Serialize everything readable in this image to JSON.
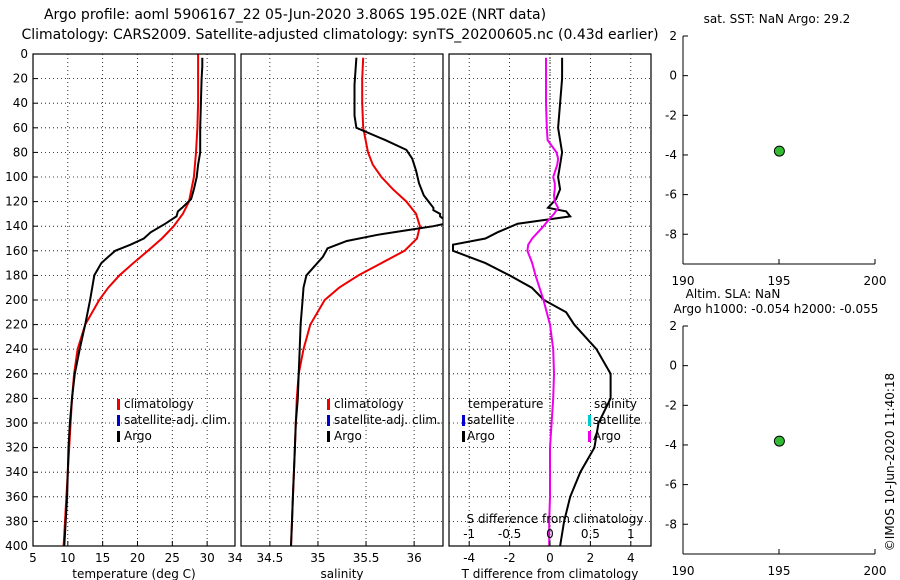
{
  "title": {
    "line1": "Argo profile: aoml 5906167_22 05-Jun-2020 3.806S 195.02E (NRT data)",
    "line2": "Climatology: CARS2009. Satellite-adjusted climatology: synTS_20200605.nc (0.43d earlier)"
  },
  "colors": {
    "climatology": "#ee0000",
    "satellite": "#0000cc",
    "argo": "#000000",
    "argo_salinity_diff": "#ee00ee",
    "satellite_salinity": "#00cccc",
    "marker": "#33bb33"
  },
  "timestamp": "©IMOS 10-Jun-2020 11:40:18",
  "legend_profile": {
    "climatology": "climatology",
    "satellite": "satellite-adj. clim.",
    "argo": "Argo"
  },
  "legend_diff": {
    "temperature": "temperature",
    "salinity": "salinity",
    "satellite": "satellite",
    "argo": "Argo"
  },
  "sst_text": "sat. SST: NaN Argo: 29.2",
  "sla_text": {
    "line1": "Altim. SLA: NaN",
    "line2": "Argo h1000: -0.054 h2000: -0.055"
  },
  "chart_data": [
    {
      "id": "temperature",
      "type": "line",
      "xlabel": "temperature (deg C)",
      "ylabel": "",
      "xlim": [
        5,
        34
      ],
      "ylim": [
        400,
        0
      ],
      "xticks": [
        5,
        10,
        15,
        20,
        25,
        30
      ],
      "yticks": [
        0,
        20,
        40,
        60,
        80,
        100,
        120,
        140,
        160,
        180,
        200,
        220,
        240,
        260,
        280,
        300,
        320,
        340,
        360,
        380,
        400
      ],
      "grid": true,
      "series": [
        {
          "name": "climatology",
          "color": "#ee0000",
          "depth": [
            0,
            20,
            40,
            60,
            80,
            100,
            120,
            130,
            140,
            150,
            160,
            170,
            180,
            190,
            200,
            220,
            240,
            260,
            280,
            300,
            320,
            340,
            360,
            380,
            400
          ],
          "values": [
            28.7,
            28.7,
            28.7,
            28.6,
            28.4,
            28.1,
            27.4,
            26.5,
            25.2,
            23.5,
            21.5,
            19.4,
            17.4,
            15.8,
            14.5,
            12.5,
            11.4,
            10.9,
            10.6,
            10.4,
            10.2,
            10.0,
            9.8,
            9.6,
            9.4
          ]
        },
        {
          "name": "Argo",
          "color": "#000000",
          "depth": [
            3,
            10,
            20,
            40,
            60,
            80,
            90,
            100,
            110,
            118,
            125,
            128,
            132,
            138,
            145,
            150,
            155,
            160,
            165,
            170,
            180,
            200,
            220,
            240,
            260,
            280,
            300,
            320,
            340,
            360,
            380,
            400
          ],
          "values": [
            29.3,
            29.3,
            29.2,
            29.1,
            29.0,
            29.0,
            28.7,
            28.5,
            28.1,
            27.7,
            26.4,
            25.8,
            25.6,
            24.0,
            21.9,
            20.9,
            19.0,
            16.8,
            15.8,
            14.8,
            13.8,
            13.2,
            12.5,
            11.7,
            11.0,
            10.6,
            10.3,
            10.1,
            10.0,
            9.9,
            9.7,
            9.5
          ]
        }
      ]
    },
    {
      "id": "salinity",
      "type": "line",
      "xlabel": "salinity",
      "ylabel": "",
      "xlim": [
        34.2,
        36.3
      ],
      "ylim": [
        400,
        0
      ],
      "xticks": [
        34.5,
        35,
        35.5,
        36
      ],
      "xtick_labels": [
        "34.5",
        "35",
        "35.5",
        "36"
      ],
      "yticks": [
        0,
        20,
        40,
        60,
        80,
        100,
        120,
        140,
        160,
        180,
        200,
        220,
        240,
        260,
        280,
        300,
        320,
        340,
        360,
        380,
        400
      ],
      "grid": true,
      "series": [
        {
          "name": "climatology",
          "color": "#ee0000",
          "depth": [
            3,
            20,
            40,
            60,
            80,
            90,
            100,
            110,
            120,
            130,
            140,
            150,
            160,
            170,
            180,
            190,
            200,
            220,
            240,
            260,
            280,
            300,
            320,
            340,
            360,
            380,
            400
          ],
          "values": [
            35.47,
            35.46,
            35.46,
            35.47,
            35.52,
            35.57,
            35.66,
            35.78,
            35.92,
            36.02,
            36.06,
            36.03,
            35.9,
            35.66,
            35.42,
            35.22,
            35.07,
            34.92,
            34.85,
            34.8,
            34.78,
            34.77,
            34.76,
            34.75,
            34.74,
            34.73,
            34.72
          ]
        },
        {
          "name": "Argo",
          "color": "#000000",
          "depth": [
            3,
            25,
            50,
            60,
            70,
            78,
            85,
            95,
            105,
            115,
            120,
            125,
            127,
            130,
            132,
            135,
            138,
            140,
            143,
            147,
            152,
            158,
            165,
            172,
            180,
            190,
            200,
            220,
            240,
            260,
            280,
            300,
            320,
            340,
            360,
            380,
            400
          ],
          "values": [
            35.4,
            35.38,
            35.38,
            35.4,
            35.7,
            35.92,
            35.98,
            36.02,
            36.05,
            36.1,
            36.15,
            36.2,
            36.2,
            36.27,
            36.27,
            36.32,
            36.32,
            36.2,
            35.95,
            35.62,
            35.3,
            35.1,
            35.05,
            34.97,
            34.88,
            34.85,
            34.84,
            34.82,
            34.81,
            34.8,
            34.79,
            34.77,
            34.76,
            34.75,
            34.74,
            34.73,
            34.72
          ]
        }
      ]
    },
    {
      "id": "difference",
      "type": "line",
      "xlabel": "T difference from climatology",
      "top_xlabel": "S difference from climatology",
      "xlim": [
        -5,
        5
      ],
      "ylim": [
        400,
        0
      ],
      "xticks": [
        -4,
        -2,
        0,
        2,
        4
      ],
      "top_xticks": [
        -1,
        -0.5,
        0,
        0.5,
        1
      ],
      "top_xtick_labels": [
        "-1",
        "-0.5",
        "0",
        "0.5",
        "1"
      ],
      "yticks": [
        0,
        20,
        40,
        60,
        80,
        100,
        120,
        140,
        160,
        180,
        200,
        220,
        240,
        260,
        280,
        300,
        320,
        340,
        360,
        380,
        400
      ],
      "grid": true,
      "series": [
        {
          "name": "Argo temperature difference",
          "color": "#000000",
          "depth": [
            3,
            20,
            40,
            60,
            70,
            80,
            90,
            100,
            110,
            118,
            125,
            128,
            132,
            138,
            145,
            150,
            155,
            160,
            165,
            170,
            180,
            190,
            200,
            210,
            220,
            240,
            260,
            280,
            300,
            320,
            340,
            360,
            380,
            400
          ],
          "values": [
            0.6,
            0.6,
            0.5,
            0.4,
            0.5,
            0.6,
            0.5,
            0.4,
            0.5,
            0.3,
            -0.1,
            0.8,
            1.0,
            -1.6,
            -2.6,
            -3.2,
            -4.8,
            -4.8,
            -4.0,
            -3.2,
            -2.0,
            -0.9,
            -0.3,
            0.8,
            1.2,
            2.3,
            3.0,
            3.0,
            2.4,
            2.2,
            1.5,
            1.0,
            0.7,
            0.5
          ]
        },
        {
          "name": "Argo salinity difference",
          "color": "#ee00ee",
          "depth": [
            3,
            20,
            40,
            60,
            70,
            80,
            85,
            90,
            100,
            105,
            110,
            115,
            120,
            125,
            130,
            135,
            140,
            145,
            150,
            155,
            160,
            165,
            170,
            180,
            190,
            200,
            220,
            240,
            260,
            280,
            300,
            320,
            340,
            360,
            380,
            400
          ],
          "values": [
            -0.05,
            -0.05,
            -0.05,
            -0.04,
            -0.03,
            0.08,
            0.1,
            0.09,
            0.04,
            0.06,
            0.06,
            0.05,
            0.06,
            0.1,
            0.05,
            -0.02,
            -0.08,
            -0.15,
            -0.22,
            -0.27,
            -0.28,
            -0.25,
            -0.22,
            -0.18,
            -0.13,
            -0.08,
            0.0,
            0.04,
            0.05,
            0.04,
            0.02,
            0.0,
            0.0,
            0.0,
            -0.01,
            -0.01
          ]
        }
      ]
    },
    {
      "id": "sst",
      "type": "scatter",
      "title": "sat. SST: NaN Argo: 29.2",
      "xlim": [
        190,
        200
      ],
      "ylim": [
        -9.5,
        2
      ],
      "xticks": [
        190,
        195,
        200
      ],
      "yticks": [
        2,
        0,
        -2,
        -4,
        -6,
        -8
      ],
      "points": [
        {
          "x": 195.02,
          "y": -3.806
        }
      ]
    },
    {
      "id": "sla",
      "type": "scatter",
      "title": "Altim. SLA: NaN / Argo h1000: -0.054 h2000: -0.055",
      "xlim": [
        190,
        200
      ],
      "ylim": [
        -9.5,
        2
      ],
      "xticks": [
        190,
        195,
        200
      ],
      "yticks": [
        2,
        0,
        -2,
        -4,
        -6,
        -8
      ],
      "points": [
        {
          "x": 195.02,
          "y": -3.806
        }
      ]
    }
  ]
}
